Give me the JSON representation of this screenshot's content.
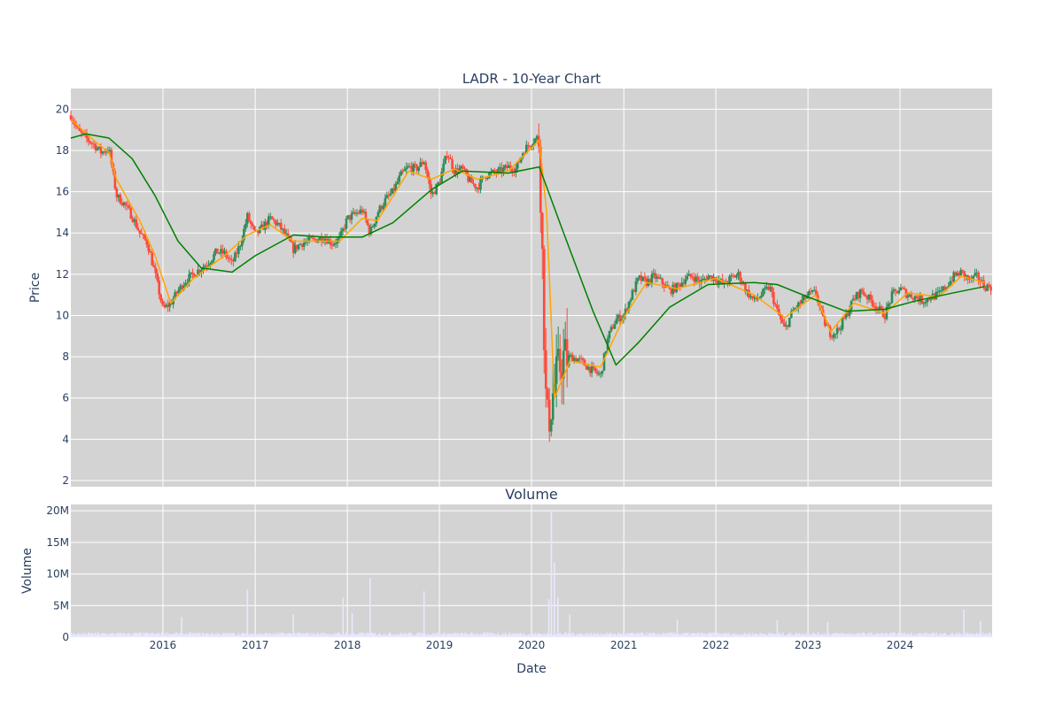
{
  "chart_data": [
    {
      "type": "candlestick",
      "title": "LADR - 10-Year Chart",
      "ylabel": "Price",
      "x_ticks": [
        "2016",
        "2017",
        "2018",
        "2019",
        "2020",
        "2021",
        "2022",
        "2023",
        "2024"
      ],
      "x_range": [
        "2015-01-01",
        "2024-12-31"
      ],
      "ylim": [
        1.7,
        21.0
      ],
      "y_ticks": [
        2,
        4,
        6,
        8,
        10,
        12,
        14,
        16,
        18,
        20
      ],
      "grid": true,
      "colors": {
        "up": "#2e8b57",
        "down": "#ff4a3a",
        "short_ma": "#ffa500",
        "long_ma": "#008000",
        "background": "#d3d3d3"
      },
      "series": [
        {
          "kind": "price_close_approx",
          "points": [
            [
              "2015-01-01",
              19.7
            ],
            [
              "2015-02-01",
              18.9
            ],
            [
              "2015-03-01",
              18.6
            ],
            [
              "2015-04-01",
              18.3
            ],
            [
              "2015-05-01",
              17.9
            ],
            [
              "2015-06-01",
              18.1
            ],
            [
              "2015-07-01",
              15.8
            ],
            [
              "2015-08-01",
              15.4
            ],
            [
              "2015-09-01",
              14.8
            ],
            [
              "2015-10-01",
              14.0
            ],
            [
              "2015-11-01",
              13.5
            ],
            [
              "2015-12-01",
              12.0
            ],
            [
              "2016-01-01",
              10.3
            ],
            [
              "2016-02-01",
              10.6
            ],
            [
              "2016-03-01",
              11.2
            ],
            [
              "2016-04-01",
              11.7
            ],
            [
              "2016-05-01",
              12.0
            ],
            [
              "2016-06-01",
              12.3
            ],
            [
              "2016-07-01",
              12.6
            ],
            [
              "2016-08-01",
              13.1
            ],
            [
              "2016-09-01",
              13.0
            ],
            [
              "2016-10-01",
              12.5
            ],
            [
              "2016-11-01",
              13.4
            ],
            [
              "2016-12-01",
              14.8
            ],
            [
              "2017-01-01",
              13.9
            ],
            [
              "2017-02-01",
              14.3
            ],
            [
              "2017-03-01",
              14.7
            ],
            [
              "2017-04-01",
              14.4
            ],
            [
              "2017-05-01",
              13.9
            ],
            [
              "2017-06-01",
              13.2
            ],
            [
              "2017-07-01",
              13.5
            ],
            [
              "2017-08-01",
              13.6
            ],
            [
              "2017-09-01",
              13.7
            ],
            [
              "2017-10-01",
              13.8
            ],
            [
              "2017-11-01",
              13.5
            ],
            [
              "2017-12-01",
              13.7
            ],
            [
              "2018-01-01",
              14.7
            ],
            [
              "2018-02-01",
              14.9
            ],
            [
              "2018-03-01",
              15.1
            ],
            [
              "2018-04-01",
              14.0
            ],
            [
              "2018-05-01",
              15.0
            ],
            [
              "2018-06-01",
              15.6
            ],
            [
              "2018-07-01",
              16.0
            ],
            [
              "2018-08-01",
              16.8
            ],
            [
              "2018-09-01",
              17.2
            ],
            [
              "2018-10-01",
              17.1
            ],
            [
              "2018-11-01",
              17.5
            ],
            [
              "2018-12-01",
              15.8
            ],
            [
              "2019-01-01",
              16.5
            ],
            [
              "2019-02-01",
              17.9
            ],
            [
              "2019-03-01",
              17.0
            ],
            [
              "2019-04-01",
              17.1
            ],
            [
              "2019-05-01",
              16.5
            ],
            [
              "2019-06-01",
              16.2
            ],
            [
              "2019-07-01",
              16.8
            ],
            [
              "2019-08-01",
              16.9
            ],
            [
              "2019-09-01",
              17.0
            ],
            [
              "2019-10-01",
              17.2
            ],
            [
              "2019-11-01",
              17.1
            ],
            [
              "2019-12-01",
              18.0
            ],
            [
              "2020-01-01",
              18.4
            ],
            [
              "2020-02-01",
              18.7
            ],
            [
              "2020-03-01",
              4.5
            ],
            [
              "2020-04-01",
              6.6
            ],
            [
              "2020-05-01",
              7.9
            ],
            [
              "2020-06-01",
              8.0
            ],
            [
              "2020-07-01",
              7.9
            ],
            [
              "2020-08-01",
              7.6
            ],
            [
              "2020-09-01",
              7.3
            ],
            [
              "2020-10-01",
              7.1
            ],
            [
              "2020-11-01",
              9.0
            ],
            [
              "2020-12-01",
              9.8
            ],
            [
              "2021-01-01",
              10.0
            ],
            [
              "2021-02-01",
              11.0
            ],
            [
              "2021-03-01",
              11.8
            ],
            [
              "2021-04-01",
              11.6
            ],
            [
              "2021-05-01",
              11.9
            ],
            [
              "2021-06-01",
              11.6
            ],
            [
              "2021-07-01",
              11.2
            ],
            [
              "2021-08-01",
              11.4
            ],
            [
              "2021-09-01",
              11.8
            ],
            [
              "2021-10-01",
              11.9
            ],
            [
              "2021-11-01",
              11.6
            ],
            [
              "2021-12-01",
              11.9
            ],
            [
              "2022-01-01",
              11.8
            ],
            [
              "2022-02-01",
              11.5
            ],
            [
              "2022-03-01",
              11.8
            ],
            [
              "2022-04-01",
              12.0
            ],
            [
              "2022-05-01",
              11.2
            ],
            [
              "2022-06-01",
              10.7
            ],
            [
              "2022-07-01",
              11.0
            ],
            [
              "2022-08-01",
              11.4
            ],
            [
              "2022-09-01",
              10.2
            ],
            [
              "2022-10-01",
              9.3
            ],
            [
              "2022-11-01",
              10.2
            ],
            [
              "2022-12-01",
              10.6
            ],
            [
              "2023-01-01",
              11.0
            ],
            [
              "2023-02-01",
              11.1
            ],
            [
              "2023-03-01",
              9.8
            ],
            [
              "2023-04-01",
              9.1
            ],
            [
              "2023-05-01",
              9.3
            ],
            [
              "2023-06-01",
              10.0
            ],
            [
              "2023-07-01",
              10.8
            ],
            [
              "2023-08-01",
              11.2
            ],
            [
              "2023-09-01",
              10.8
            ],
            [
              "2023-10-01",
              10.4
            ],
            [
              "2023-11-01",
              10.0
            ],
            [
              "2023-12-01",
              11.0
            ],
            [
              "2024-01-01",
              11.3
            ],
            [
              "2024-02-01",
              11.0
            ],
            [
              "2024-03-01",
              10.9
            ],
            [
              "2024-04-01",
              10.7
            ],
            [
              "2024-05-01",
              10.9
            ],
            [
              "2024-06-01",
              11.0
            ],
            [
              "2024-07-01",
              11.4
            ],
            [
              "2024-08-01",
              11.9
            ],
            [
              "2024-09-01",
              12.1
            ],
            [
              "2024-10-01",
              11.7
            ],
            [
              "2024-11-01",
              11.9
            ],
            [
              "2024-12-01",
              11.4
            ]
          ]
        },
        {
          "kind": "moving_average_short",
          "points": [
            [
              "2015-01-01",
              19.5
            ],
            [
              "2015-04-01",
              18.5
            ],
            [
              "2015-06-01",
              17.9
            ],
            [
              "2015-07-01",
              16.6
            ],
            [
              "2015-10-01",
              14.6
            ],
            [
              "2015-12-01",
              12.9
            ],
            [
              "2016-02-01",
              10.6
            ],
            [
              "2016-05-01",
              11.8
            ],
            [
              "2016-09-01",
              12.9
            ],
            [
              "2016-12-01",
              13.9
            ],
            [
              "2017-03-01",
              14.4
            ],
            [
              "2017-06-01",
              13.6
            ],
            [
              "2017-12-01",
              13.6
            ],
            [
              "2018-03-01",
              14.7
            ],
            [
              "2018-05-01",
              14.6
            ],
            [
              "2018-09-01",
              17.0
            ],
            [
              "2018-12-01",
              16.6
            ],
            [
              "2019-03-01",
              17.1
            ],
            [
              "2019-06-01",
              16.6
            ],
            [
              "2019-10-01",
              17.0
            ],
            [
              "2020-02-01",
              18.5
            ],
            [
              "2020-03-01",
              15.0
            ],
            [
              "2020-04-01",
              6.0
            ],
            [
              "2020-06-01",
              7.8
            ],
            [
              "2020-10-01",
              7.5
            ],
            [
              "2021-01-01",
              9.9
            ],
            [
              "2021-04-01",
              11.6
            ],
            [
              "2021-08-01",
              11.3
            ],
            [
              "2022-01-01",
              11.8
            ],
            [
              "2022-06-01",
              11.0
            ],
            [
              "2022-10-01",
              9.9
            ],
            [
              "2023-02-01",
              11.0
            ],
            [
              "2023-04-01",
              9.2
            ],
            [
              "2023-07-01",
              10.6
            ],
            [
              "2023-11-01",
              10.1
            ],
            [
              "2024-02-01",
              11.1
            ],
            [
              "2024-06-01",
              10.9
            ],
            [
              "2024-09-01",
              11.9
            ],
            [
              "2024-12-01",
              11.6
            ]
          ]
        },
        {
          "kind": "moving_average_long",
          "points": [
            [
              "2015-01-01",
              18.6
            ],
            [
              "2015-03-01",
              18.8
            ],
            [
              "2015-06-01",
              18.6
            ],
            [
              "2015-09-01",
              17.6
            ],
            [
              "2015-12-01",
              15.8
            ],
            [
              "2016-03-01",
              13.6
            ],
            [
              "2016-06-01",
              12.3
            ],
            [
              "2016-10-01",
              12.1
            ],
            [
              "2017-01-01",
              12.9
            ],
            [
              "2017-06-01",
              13.9
            ],
            [
              "2017-10-01",
              13.8
            ],
            [
              "2018-03-01",
              13.8
            ],
            [
              "2018-07-01",
              14.5
            ],
            [
              "2018-12-01",
              16.1
            ],
            [
              "2019-04-01",
              17.0
            ],
            [
              "2019-10-01",
              16.9
            ],
            [
              "2020-02-01",
              17.2
            ],
            [
              "2020-05-01",
              14.2
            ],
            [
              "2020-09-01",
              10.2
            ],
            [
              "2020-12-01",
              7.6
            ],
            [
              "2021-03-01",
              8.7
            ],
            [
              "2021-07-01",
              10.4
            ],
            [
              "2021-12-01",
              11.5
            ],
            [
              "2022-06-01",
              11.6
            ],
            [
              "2022-09-01",
              11.5
            ],
            [
              "2023-01-01",
              10.9
            ],
            [
              "2023-06-01",
              10.2
            ],
            [
              "2023-11-01",
              10.3
            ],
            [
              "2024-03-01",
              10.7
            ],
            [
              "2024-08-01",
              11.1
            ],
            [
              "2024-12-01",
              11.4
            ]
          ]
        }
      ]
    },
    {
      "type": "bar",
      "title": "Volume",
      "xlabel": "Date",
      "ylabel": "Volume",
      "ylim": [
        0,
        21000000
      ],
      "y_ticks": [
        0,
        5000000,
        10000000,
        15000000,
        20000000
      ],
      "y_tick_labels": [
        "0",
        "5M",
        "10M",
        "15M",
        "20M"
      ],
      "x_ticks": [
        "2016",
        "2017",
        "2018",
        "2019",
        "2020",
        "2021",
        "2022",
        "2023",
        "2024"
      ],
      "grid": true,
      "bar_color": "#e8e8ff",
      "spikes": [
        [
          "2016-03-15",
          3200000
        ],
        [
          "2016-12-01",
          7500000
        ],
        [
          "2017-06-01",
          3600000
        ],
        [
          "2017-12-15",
          6200000
        ],
        [
          "2018-01-20",
          3800000
        ],
        [
          "2018-04-01",
          9400000
        ],
        [
          "2018-11-01",
          7300000
        ],
        [
          "2020-03-10",
          6000000
        ],
        [
          "2020-03-20",
          20000000
        ],
        [
          "2020-04-01",
          11800000
        ],
        [
          "2020-04-15",
          6400000
        ],
        [
          "2020-06-01",
          3600000
        ],
        [
          "2021-08-01",
          2800000
        ],
        [
          "2022-09-01",
          2700000
        ],
        [
          "2023-03-20",
          2400000
        ],
        [
          "2024-09-10",
          4400000
        ],
        [
          "2024-11-15",
          2600000
        ]
      ],
      "baseline_typical": 600000
    }
  ]
}
